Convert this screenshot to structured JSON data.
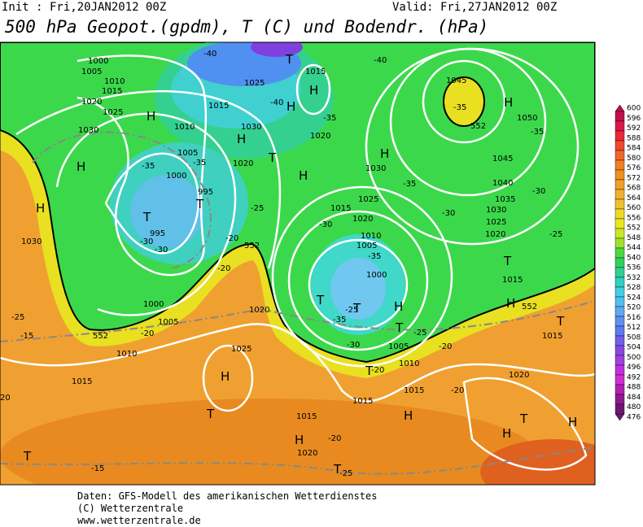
{
  "header": {
    "init": "Init : Fri,20JAN2012 00Z",
    "valid": "Valid: Fri,27JAN2012 00Z",
    "title": "500 hPa Geopot.(gpdm), T (C) und Bodendr. (hPa)"
  },
  "map": {
    "labels": [
      "1000",
      "1005",
      "1010",
      "1015",
      "1020",
      "1025",
      "1030",
      "H",
      "H",
      "H",
      "1030",
      "T",
      "995",
      "-30",
      "-30",
      "1000",
      "1005",
      "1010",
      "1015",
      "1025",
      "1030",
      "H",
      "1020",
      "995",
      "T",
      "-35",
      "-35",
      "-40",
      "-40",
      "T",
      "1015",
      "H",
      "H",
      "-35",
      "1020",
      "T",
      "H",
      "-40",
      "1045",
      "-35",
      "H",
      "552",
      "1050",
      "-35",
      "H",
      "1030",
      "1045",
      "1040",
      "-35",
      "1025",
      "1035",
      "-30",
      "1015",
      "1020",
      "-30",
      "1030",
      "1025",
      "-30",
      "1020",
      "1010",
      "1005",
      "-25",
      "-35",
      "T",
      "1000",
      "1015",
      "T",
      "-25",
      "H",
      "T",
      "-35",
      "T",
      "H",
      "552",
      "-25",
      "T",
      "1015",
      "1005",
      "-20",
      "-30",
      "1010",
      "T",
      "-20",
      "-25",
      "1000",
      "1005",
      "552",
      "-20",
      "-15",
      "1010",
      "1020",
      "1025",
      "H",
      "1015",
      "552",
      "-25",
      "-20",
      "-20",
      "1015",
      "1015",
      "-20",
      "1020",
      "H",
      "H",
      "T",
      "H",
      "T",
      "1015",
      "H",
      "1020",
      "-20",
      "T",
      "-25",
      "T",
      "-15",
      "20"
    ]
  },
  "legend": {
    "labels": [
      600,
      596,
      592,
      588,
      584,
      580,
      576,
      572,
      568,
      564,
      560,
      556,
      552,
      548,
      544,
      540,
      536,
      532,
      528,
      524,
      520,
      516,
      512,
      508,
      504,
      500,
      496,
      492,
      488,
      484,
      480,
      476
    ],
    "colors": [
      "#c0104a",
      "#d81848",
      "#e82838",
      "#f04830",
      "#f06828",
      "#f08020",
      "#f09020",
      "#f0a028",
      "#f0b030",
      "#f0c030",
      "#f0d828",
      "#e8e820",
      "#c8e828",
      "#a0e030",
      "#50d840",
      "#30d060",
      "#30d090",
      "#30d0c0",
      "#40d0e0",
      "#50c0f0",
      "#60a8f0",
      "#6090f0",
      "#6078f0",
      "#7060e8",
      "#8848e0",
      "#a040e0",
      "#c030e0",
      "#d030d0",
      "#b020b0",
      "#901890",
      "#701870"
    ]
  },
  "footer": {
    "line1": "Daten: GFS-Modell des amerikanischen Wetterdienstes",
    "line2": "(C) Wetterzentrale",
    "line3": "www.wetterzentrale.de"
  }
}
